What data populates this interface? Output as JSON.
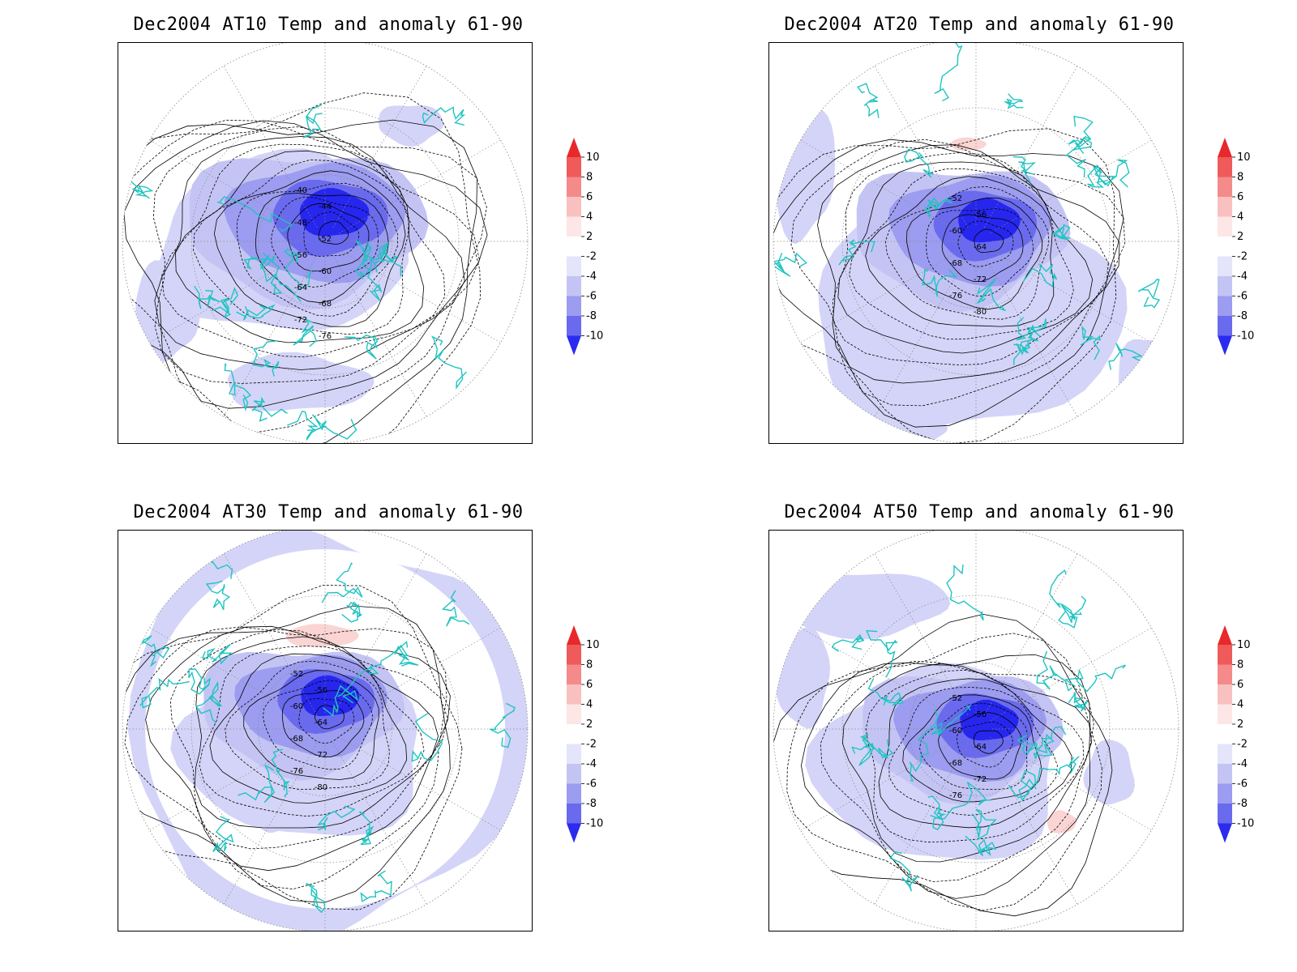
{
  "panels": [
    {
      "id": "at10",
      "title": "Dec2004 AT10 Temp and anomaly 61-90",
      "contour_labels": [
        "-40",
        "-44",
        "-48",
        "-52",
        "-56",
        "-60",
        "-64",
        "-68",
        "-72",
        "-76"
      ]
    },
    {
      "id": "at20",
      "title": "Dec2004 AT20 Temp and anomaly 61-90",
      "contour_labels": [
        "-52",
        "-56",
        "-60",
        "-64",
        "-68",
        "-72",
        "-76",
        "-80"
      ]
    },
    {
      "id": "at30",
      "title": "Dec2004 AT30 Temp and anomaly 61-90",
      "contour_labels": [
        "-52",
        "-56",
        "-60",
        "-64",
        "-68",
        "-72",
        "-76",
        "-80"
      ]
    },
    {
      "id": "at50",
      "title": "Dec2004 AT50 Temp and anomaly 61-90",
      "contour_labels": [
        "-52",
        "-56",
        "-60",
        "-64",
        "-68",
        "-72",
        "-76"
      ]
    }
  ],
  "colorbar": {
    "levels": [
      "10",
      "8",
      "6",
      "4",
      "2",
      "-2",
      "-4",
      "-6",
      "-8",
      "-10"
    ],
    "colors": [
      "#e8282a",
      "#ef5a5a",
      "#f48a8a",
      "#f9c0c0",
      "#fde6e6",
      "#ffffff",
      "#e4e4fa",
      "#c4c4f4",
      "#9c9cf0",
      "#6a6aee",
      "#2b2bf0"
    ]
  },
  "colors": {
    "coastline": "#20c4c0",
    "contour": "#000000",
    "grid": "#888888",
    "anomaly_neg_strong": "#2626ee",
    "anomaly_neg_weak": "#d4d4f8",
    "anomaly_pos_weak": "#fbd4d4"
  }
}
